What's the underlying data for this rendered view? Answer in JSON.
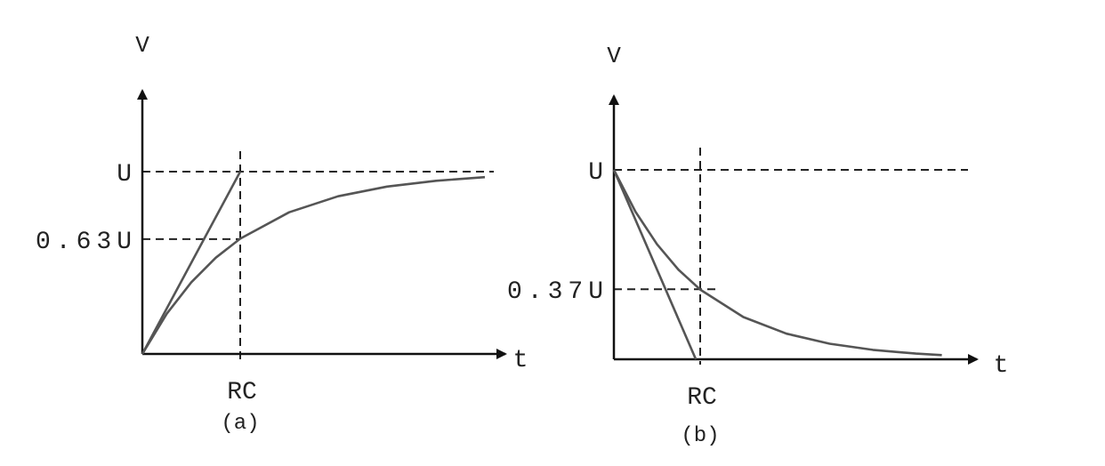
{
  "chart_data": [
    {
      "type": "line",
      "caption": "(a)",
      "xlabel": "t",
      "ylabel": "V",
      "x_ticks": [
        {
          "label": "RC",
          "value": 1
        }
      ],
      "y_ticks": [
        {
          "label": "U",
          "value": 1
        },
        {
          "label": "0.63U",
          "value": 0.63
        }
      ],
      "grid": false,
      "series": [
        {
          "x": [
            0,
            0.25,
            0.5,
            0.75,
            1,
            1.5,
            2,
            2.5,
            3,
            3.5
          ],
          "y": [
            0,
            0.221,
            0.393,
            0.528,
            0.632,
            0.777,
            0.865,
            0.918,
            0.95,
            0.97
          ]
        },
        {
          "x": [
            0,
            1
          ],
          "y": [
            0,
            1
          ]
        }
      ],
      "guides": {
        "horizontal": [
          1,
          0.63
        ],
        "vertical": [
          1
        ]
      }
    },
    {
      "type": "line",
      "caption": "(b)",
      "xlabel": "t",
      "ylabel": "V",
      "x_ticks": [
        {
          "label": "RC",
          "value": 1
        }
      ],
      "y_ticks": [
        {
          "label": "U",
          "value": 1
        },
        {
          "label": "0.37U",
          "value": 0.37
        }
      ],
      "grid": false,
      "series": [
        {
          "x": [
            0,
            0.25,
            0.5,
            0.75,
            1,
            1.5,
            2,
            2.5,
            3,
            3.5,
            3.8
          ],
          "y": [
            1,
            0.779,
            0.607,
            0.472,
            0.368,
            0.223,
            0.135,
            0.082,
            0.05,
            0.03,
            0.022
          ]
        },
        {
          "x": [
            0,
            0.95
          ],
          "y": [
            1,
            0
          ]
        }
      ],
      "guides": {
        "horizontal": [
          1,
          0.37
        ],
        "vertical": [
          1
        ]
      }
    }
  ]
}
